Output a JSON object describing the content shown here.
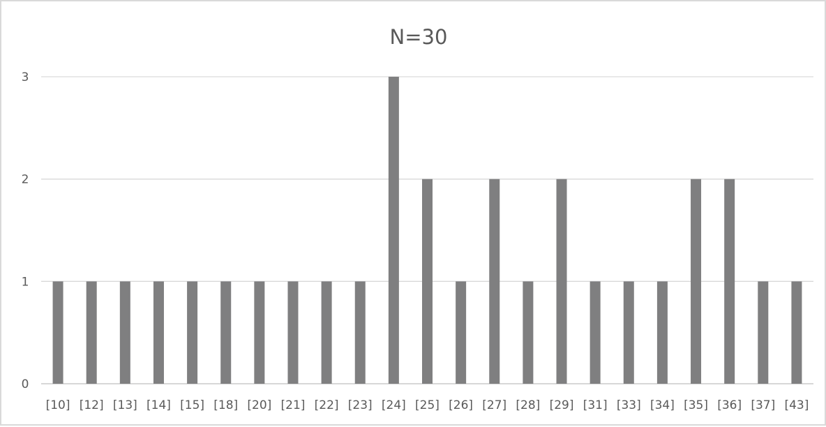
{
  "chart_data": {
    "type": "bar",
    "title": "N=30",
    "xlabel": "",
    "ylabel": "",
    "categories": [
      "[10]",
      "[12]",
      "[13]",
      "[14]",
      "[15]",
      "[18]",
      "[20]",
      "[21]",
      "[22]",
      "[23]",
      "[24]",
      "[25]",
      "[26]",
      "[27]",
      "[28]",
      "[29]",
      "[31]",
      "[33]",
      "[34]",
      "[35]",
      "[36]",
      "[37]",
      "[43]"
    ],
    "values": [
      1,
      1,
      1,
      1,
      1,
      1,
      1,
      1,
      1,
      1,
      3,
      2,
      1,
      2,
      1,
      2,
      1,
      1,
      1,
      2,
      2,
      1,
      1
    ],
    "ylim": [
      0,
      3
    ],
    "yticks": [
      0,
      1,
      2,
      3
    ],
    "grid": true,
    "legend": "none",
    "bar_color": "#7f7f80"
  }
}
